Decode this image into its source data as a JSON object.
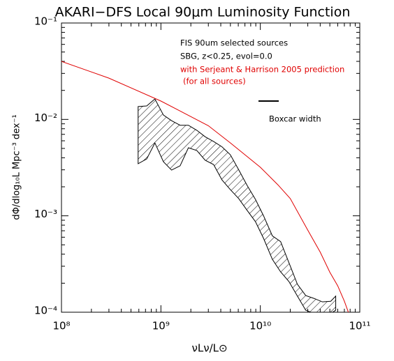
{
  "chart_data": {
    "type": "line",
    "title": "AKARI−DFS Local 90μm Luminosity Function",
    "x_label": "νLν/L⊙",
    "y_label": "dΦ/dlog₁₀L Mpc⁻³ dex⁻¹",
    "log_x": true,
    "log_y": true,
    "xlim": [
      100000000.0,
      100000000000.0
    ],
    "ylim": [
      0.0001,
      0.1
    ],
    "xticks": [
      {
        "value": 100000000.0,
        "label": "10⁸"
      },
      {
        "value": 1000000000.0,
        "label": "10⁹"
      },
      {
        "value": 10000000000.0,
        "label": "10¹⁰"
      },
      {
        "value": 100000000000.0,
        "label": "10¹¹"
      }
    ],
    "yticks": [
      {
        "value": 0.0001,
        "label": "10⁻⁴"
      },
      {
        "value": 0.001,
        "label": "10⁻³"
      },
      {
        "value": 0.01,
        "label": "10⁻²"
      },
      {
        "value": 0.1,
        "label": "10⁻¹"
      }
    ],
    "annotations": [
      {
        "text": "FIS 90um selected sources",
        "color": "#000000"
      },
      {
        "text": "SBG, z<0.25, evol=0.0",
        "color": "#000000"
      },
      {
        "text": "with Serjeant & Harrison 2005 prediction",
        "color": "#e00000"
      },
      {
        "text": "(for all sources)",
        "color": "#e00000"
      },
      {
        "text": "Boxcar width",
        "color": "#000000"
      }
    ],
    "band": {
      "color": "#000000",
      "x": [
        590000000.0,
        720000000.0,
        870000000.0,
        1060000000.0,
        1280000000.0,
        1560000000.0,
        1890000000.0,
        2300000000.0,
        2790000000.0,
        3390000000.0,
        4110000000.0,
        4990000000.0,
        6060000000.0,
        7360000000.0,
        8930000000.0,
        10800000000.0,
        13200000000.0,
        16000000000.0,
        19400000000.0,
        23600000000.0,
        28600000000.0,
        34700000000.0,
        42100000000.0,
        51100000000.0,
        57300000000.0
      ],
      "upper": [
        0.0136,
        0.0138,
        0.0163,
        0.0111,
        0.0097,
        0.0087,
        0.0087,
        0.0077,
        0.0066,
        0.0059,
        0.0052,
        0.0043,
        0.003,
        0.00207,
        0.00148,
        0.000995,
        0.00062,
        0.00054,
        0.000326,
        0.000195,
        0.000149,
        0.000139,
        0.000128,
        0.00013,
        0.000147
      ],
      "lower": [
        0.00347,
        0.00389,
        0.0057,
        0.00364,
        0.00298,
        0.0033,
        0.00508,
        0.00475,
        0.00377,
        0.0034,
        0.00236,
        0.00187,
        0.00151,
        0.00114,
        0.00087,
        0.00058,
        0.000354,
        0.000262,
        0.000208,
        0.000147,
        0.000105,
        9.7e-05,
        9.4e-05,
        9.7e-05,
        0.000105
      ]
    },
    "series": [
      {
        "color": "#e00000",
        "x": [
          100000000.0,
          300000000.0,
          1000000000.0,
          3000000000.0,
          5000000000.0,
          10000000000.0,
          15000000000.0,
          20000000000.0,
          30000000000.0,
          40000000000.0,
          50000000000.0,
          60000000000.0,
          70000000000.0,
          80000000000.0
        ],
        "values": [
          0.04,
          0.0268,
          0.0155,
          0.0086,
          0.0057,
          0.00319,
          0.0021,
          0.00151,
          0.00071,
          0.00042,
          0.00026,
          0.000188,
          0.00013,
          8.9e-05
        ]
      }
    ]
  }
}
